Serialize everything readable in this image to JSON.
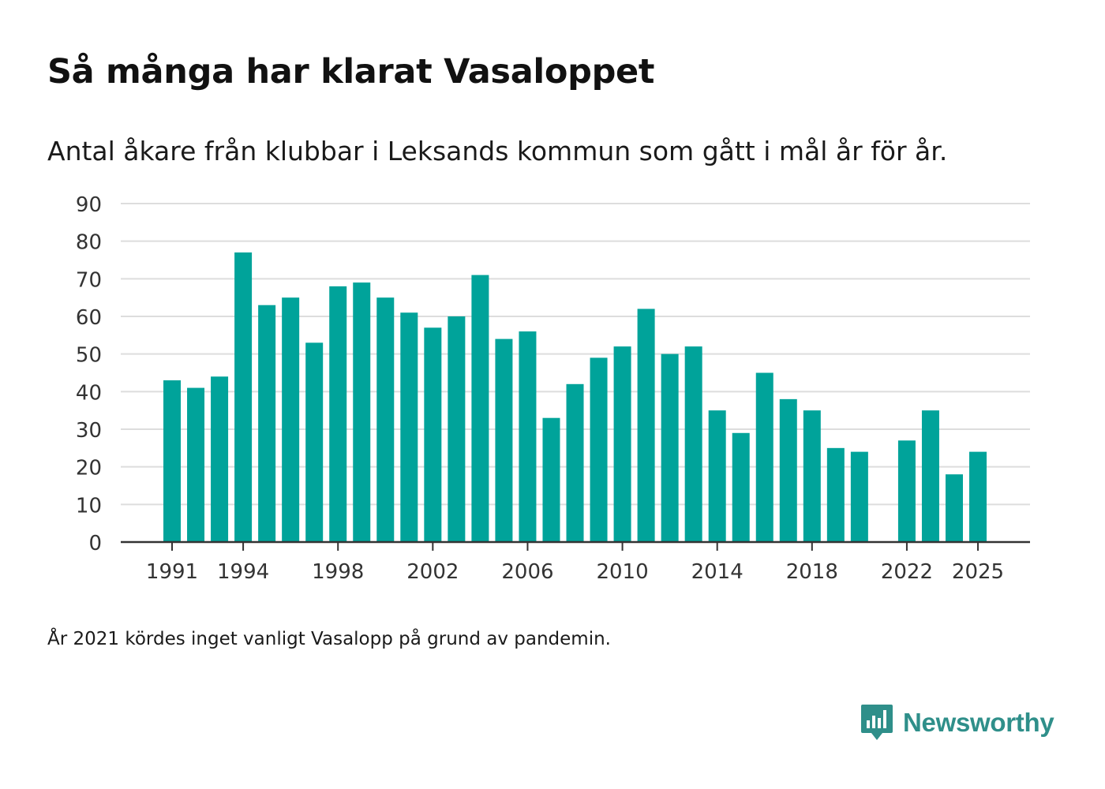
{
  "header": {
    "title": "Så många har klarat Vasaloppet",
    "subtitle": "Antal åkare från klubbar i Leksands kommun som gått i mål år för år."
  },
  "footer": {
    "note": "År 2021 kördes inget vanligt Vasalopp på grund av pandemin.",
    "brand": "Newsworthy",
    "brand_icon": "newsworthy-logo-icon"
  },
  "colors": {
    "bar": "#00a39a",
    "brand": "#2f8f8a",
    "grid": "#dddddd",
    "axis": "#333333",
    "tick_text": "#333333"
  },
  "chart_data": {
    "type": "bar",
    "title": "Så många har klarat Vasaloppet",
    "subtitle": "Antal åkare från klubbar i Leksands kommun som gått i mål år för år.",
    "xlabel": "",
    "ylabel": "",
    "categories": [
      1991,
      1992,
      1993,
      1994,
      1995,
      1996,
      1997,
      1998,
      1999,
      2000,
      2001,
      2002,
      2003,
      2004,
      2005,
      2006,
      2007,
      2008,
      2009,
      2010,
      2011,
      2012,
      2013,
      2014,
      2015,
      2016,
      2017,
      2018,
      2019,
      2020,
      2021,
      2022,
      2023,
      2024,
      2025
    ],
    "values": [
      43,
      41,
      44,
      77,
      63,
      65,
      53,
      68,
      69,
      65,
      61,
      57,
      60,
      71,
      54,
      56,
      33,
      42,
      49,
      52,
      62,
      50,
      52,
      35,
      29,
      45,
      38,
      35,
      25,
      24,
      null,
      27,
      35,
      18,
      24
    ],
    "x_tick_labels": [
      "1991",
      "1994",
      "1998",
      "2002",
      "2006",
      "2010",
      "2014",
      "2018",
      "2022",
      "2025"
    ],
    "y_ticks": [
      0,
      10,
      20,
      30,
      40,
      50,
      60,
      70,
      80,
      90
    ],
    "ylim": [
      0,
      90
    ],
    "grid": true,
    "legend": "none"
  }
}
